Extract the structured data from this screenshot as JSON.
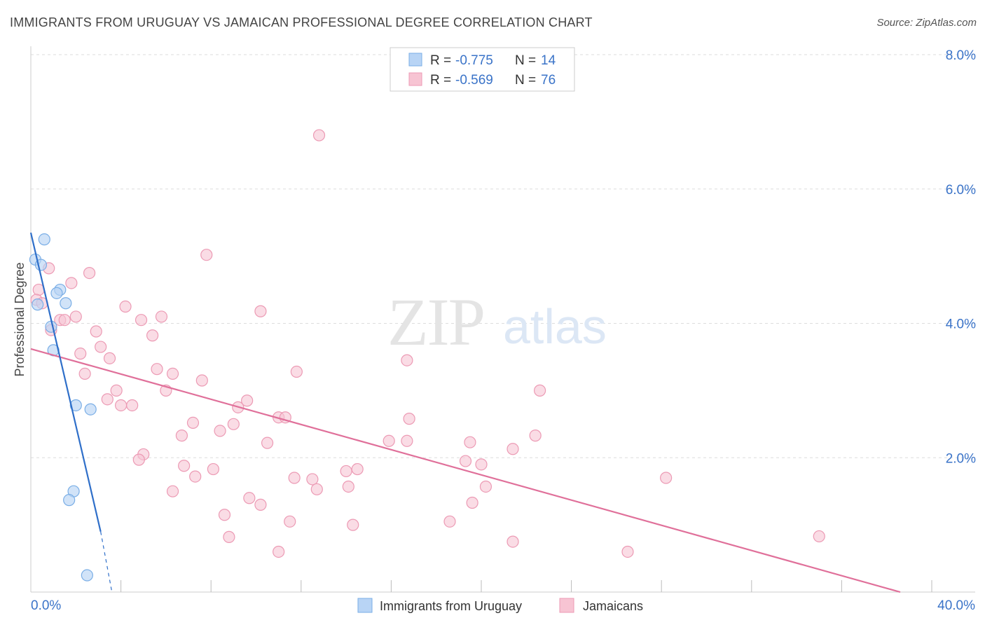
{
  "header": {
    "title": "IMMIGRANTS FROM URUGUAY VS JAMAICAN PROFESSIONAL DEGREE CORRELATION CHART",
    "source": "Source: ZipAtlas.com"
  },
  "colors": {
    "uruguay_fill": "#b8d4f5",
    "uruguay_stroke": "#7aaee6",
    "uruguay_line": "#2f6fc9",
    "jamaica_fill": "#f7c4d3",
    "jamaica_stroke": "#ec9ab4",
    "jamaica_line": "#e0709a",
    "value_text": "#3a73c8",
    "grid": "#dddddd"
  },
  "legend_stats": [
    {
      "r_label": "R =",
      "r_value": "-0.775",
      "n_label": "N =",
      "n_value": "14"
    },
    {
      "r_label": "R =",
      "r_value": "-0.569",
      "n_label": "N =",
      "n_value": "76"
    }
  ],
  "watermark": {
    "zip": "ZIP",
    "atlas": "atlas"
  },
  "chart_data": {
    "type": "scatter",
    "title": "IMMIGRANTS FROM URUGUAY VS JAMAICAN PROFESSIONAL DEGREE CORRELATION CHART",
    "xlabel": "",
    "ylabel": "Professional Degree",
    "xlim": [
      0,
      40
    ],
    "ylim": [
      0,
      8.0
    ],
    "x_tick_labels": [
      "0.0%",
      "40.0%"
    ],
    "y_tick_labels": [
      "2.0%",
      "4.0%",
      "6.0%",
      "8.0%"
    ],
    "y_ticks": [
      2.0,
      4.0,
      6.0,
      8.0
    ],
    "grid": true,
    "legend_position": "bottom",
    "series": [
      {
        "name": "Immigrants from Uruguay",
        "color": "#b8d4f5",
        "points": [
          [
            0.6,
            5.25
          ],
          [
            0.2,
            4.95
          ],
          [
            0.45,
            4.87
          ],
          [
            1.3,
            4.5
          ],
          [
            1.15,
            4.45
          ],
          [
            1.55,
            4.3
          ],
          [
            0.3,
            4.28
          ],
          [
            0.9,
            3.95
          ],
          [
            1.0,
            3.6
          ],
          [
            2.0,
            2.78
          ],
          [
            2.65,
            2.72
          ],
          [
            1.9,
            1.5
          ],
          [
            1.7,
            1.37
          ],
          [
            2.5,
            0.25
          ]
        ],
        "trend": {
          "x": [
            0.0,
            3.1
          ],
          "y": [
            5.35,
            0.9
          ],
          "dashed_to": [
            3.6,
            0.0
          ]
        }
      },
      {
        "name": "Jamaicans",
        "color": "#f7c4d3",
        "points": [
          [
            12.8,
            6.8
          ],
          [
            7.8,
            5.02
          ],
          [
            0.8,
            4.82
          ],
          [
            2.6,
            4.75
          ],
          [
            1.8,
            4.6
          ],
          [
            0.35,
            4.5
          ],
          [
            0.25,
            4.35
          ],
          [
            0.5,
            4.3
          ],
          [
            4.2,
            4.25
          ],
          [
            10.2,
            4.18
          ],
          [
            2.0,
            4.1
          ],
          [
            5.8,
            4.1
          ],
          [
            1.3,
            4.05
          ],
          [
            1.5,
            4.05
          ],
          [
            4.9,
            4.05
          ],
          [
            0.9,
            3.9
          ],
          [
            2.9,
            3.88
          ],
          [
            5.4,
            3.82
          ],
          [
            3.1,
            3.65
          ],
          [
            2.2,
            3.55
          ],
          [
            3.5,
            3.48
          ],
          [
            16.7,
            3.45
          ],
          [
            5.6,
            3.32
          ],
          [
            6.3,
            3.25
          ],
          [
            2.4,
            3.25
          ],
          [
            11.8,
            3.28
          ],
          [
            7.6,
            3.15
          ],
          [
            3.8,
            3.0
          ],
          [
            6.0,
            3.0
          ],
          [
            22.6,
            3.0
          ],
          [
            3.4,
            2.87
          ],
          [
            9.6,
            2.85
          ],
          [
            4.0,
            2.78
          ],
          [
            4.5,
            2.78
          ],
          [
            9.2,
            2.75
          ],
          [
            11.0,
            2.6
          ],
          [
            11.3,
            2.6
          ],
          [
            16.8,
            2.58
          ],
          [
            7.2,
            2.52
          ],
          [
            9.0,
            2.5
          ],
          [
            8.4,
            2.4
          ],
          [
            6.7,
            2.33
          ],
          [
            22.4,
            2.33
          ],
          [
            15.9,
            2.25
          ],
          [
            16.7,
            2.25
          ],
          [
            19.5,
            2.23
          ],
          [
            10.5,
            2.22
          ],
          [
            21.4,
            2.13
          ],
          [
            5.0,
            2.05
          ],
          [
            4.8,
            1.97
          ],
          [
            19.3,
            1.95
          ],
          [
            20.0,
            1.9
          ],
          [
            6.8,
            1.88
          ],
          [
            8.1,
            1.83
          ],
          [
            14.5,
            1.83
          ],
          [
            14.0,
            1.8
          ],
          [
            7.3,
            1.72
          ],
          [
            11.7,
            1.7
          ],
          [
            12.5,
            1.68
          ],
          [
            28.2,
            1.7
          ],
          [
            14.1,
            1.57
          ],
          [
            20.2,
            1.57
          ],
          [
            12.7,
            1.53
          ],
          [
            6.3,
            1.5
          ],
          [
            9.7,
            1.4
          ],
          [
            10.2,
            1.3
          ],
          [
            19.6,
            1.33
          ],
          [
            8.6,
            1.15
          ],
          [
            11.5,
            1.05
          ],
          [
            18.6,
            1.05
          ],
          [
            14.3,
            1.0
          ],
          [
            8.8,
            0.82
          ],
          [
            21.4,
            0.75
          ],
          [
            35.0,
            0.83
          ],
          [
            11.0,
            0.6
          ],
          [
            26.5,
            0.6
          ]
        ],
        "trend": {
          "x": [
            0.0,
            38.6
          ],
          "y": [
            3.62,
            0.0
          ]
        }
      }
    ]
  }
}
